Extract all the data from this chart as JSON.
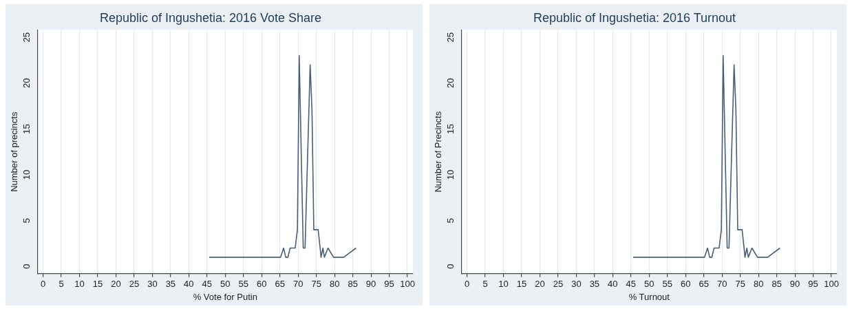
{
  "chart_data": [
    {
      "type": "line",
      "title": "Republic of Ingushetia: 2016 Vote Share",
      "xlabel": "% Vote for Putin",
      "ylabel": "Number of precincts",
      "x": [
        45.6,
        65.2,
        66,
        66.6,
        67.2,
        67.8,
        69.2,
        69.8,
        70.3,
        71.4,
        71.9,
        73.3,
        73.8,
        74.3,
        75.5,
        76.3,
        76.8,
        77.2,
        78.2,
        79.7,
        82.5,
        85.9
      ],
      "series": [
        {
          "color": "#4a5d78",
          "values": [
            1,
            1,
            2,
            1,
            1,
            2,
            2,
            4,
            23,
            2,
            2,
            22,
            17,
            4,
            4,
            1,
            2,
            1,
            2,
            1,
            1,
            2
          ]
        }
      ],
      "xlim": [
        -1.5,
        101.5
      ],
      "xticks": [
        0,
        5,
        10,
        15,
        20,
        25,
        30,
        35,
        40,
        45,
        50,
        55,
        60,
        65,
        70,
        75,
        80,
        85,
        90,
        95,
        100
      ],
      "ylim": [
        -0.8,
        25.8
      ],
      "yticks": [
        0,
        5,
        10,
        15,
        20,
        25
      ],
      "grid": "x",
      "legend": false,
      "marker": "none",
      "line_style": "solid"
    },
    {
      "type": "line",
      "title": "Republic of Ingushetia: 2016 Turnout",
      "xlabel": "% Turnout",
      "ylabel": "Number of Precincts",
      "x": [
        45.6,
        65.2,
        66,
        66.6,
        67.2,
        67.8,
        69.2,
        69.8,
        70.3,
        71.4,
        71.9,
        73.3,
        73.8,
        74.3,
        75.5,
        76.3,
        76.8,
        77.2,
        78.2,
        79.7,
        82.5,
        85.9
      ],
      "series": [
        {
          "color": "#4a5d78",
          "values": [
            1,
            1,
            2,
            1,
            1,
            2,
            2,
            4,
            23,
            2,
            2,
            22,
            17,
            4,
            4,
            1,
            2,
            1,
            2,
            1,
            1,
            2
          ]
        }
      ],
      "xlim": [
        -1.5,
        101.5
      ],
      "xticks": [
        0,
        5,
        10,
        15,
        20,
        25,
        30,
        35,
        40,
        45,
        50,
        55,
        60,
        65,
        70,
        75,
        80,
        85,
        90,
        95,
        100
      ],
      "ylim": [
        -0.8,
        25.8
      ],
      "yticks": [
        0,
        5,
        10,
        15,
        20,
        25
      ],
      "grid": "x",
      "legend": false,
      "marker": "none",
      "line_style": "solid"
    }
  ]
}
